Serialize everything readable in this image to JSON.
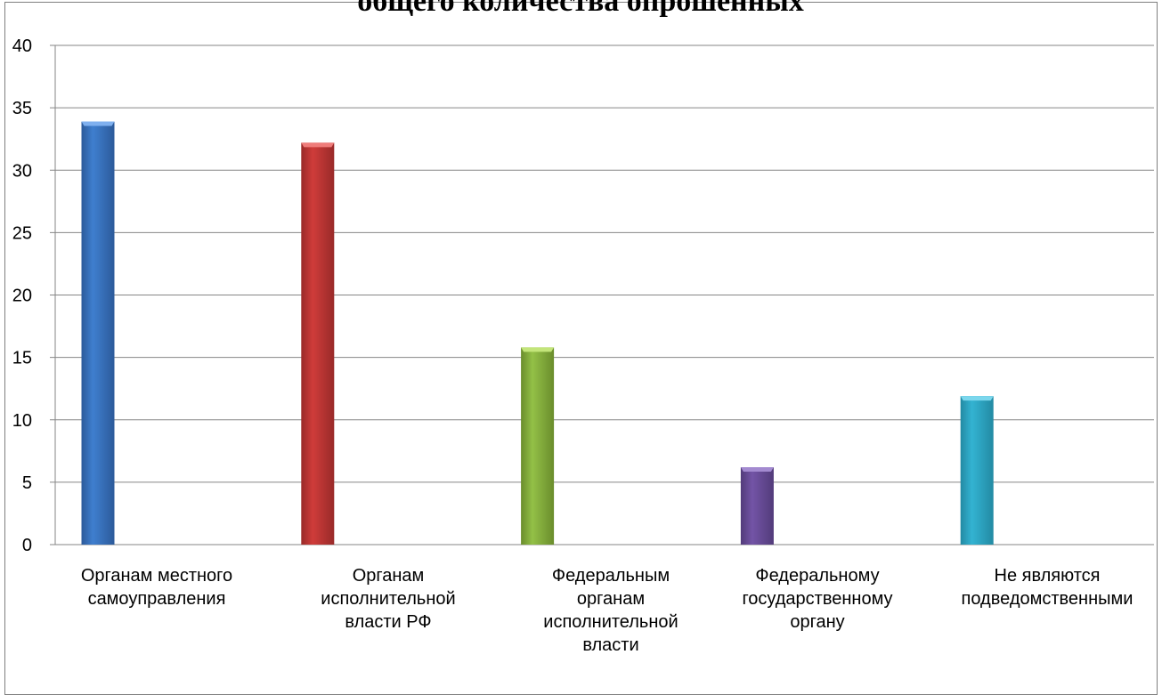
{
  "chart_data": {
    "type": "bar",
    "title": "общего количества опрошенных",
    "xlabel": "",
    "ylabel": "",
    "ylim": [
      0,
      40
    ],
    "yticks": [
      0,
      5,
      10,
      15,
      20,
      25,
      30,
      35,
      40
    ],
    "grid": true,
    "legend": "none",
    "categories": [
      [
        "Органам местного",
        "самоуправления"
      ],
      [
        "Органам",
        "исполнительной",
        "власти РФ"
      ],
      [
        "Федеральным",
        "органам",
        "исполнительной",
        "власти"
      ],
      [
        "Федеральному",
        "государственному",
        "органу"
      ],
      [
        "Не являются",
        "подведомственными"
      ]
    ],
    "values": [
      33.9,
      32.2,
      15.8,
      6.2,
      11.9
    ],
    "colors": [
      "#3f7fcf",
      "#cf3c3a",
      "#93c047",
      "#7354a6",
      "#33b3d2"
    ],
    "colors_dark": [
      "#2c5a9a",
      "#992a29",
      "#6a8d2c",
      "#523b7a",
      "#238aa3"
    ],
    "colors_light": [
      "#7fb0ef",
      "#ef7c7a",
      "#c3e57a",
      "#a38ad0",
      "#7bd7ed"
    ]
  }
}
